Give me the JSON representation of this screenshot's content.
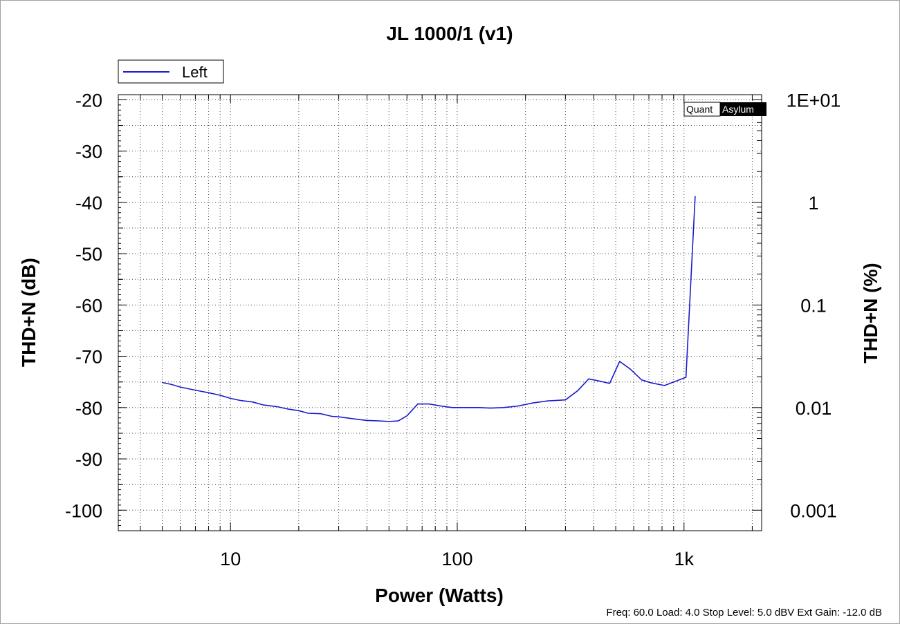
{
  "chart_data": {
    "type": "line",
    "title": "JL 1000/1 (v1)",
    "xlabel": "Power (Watts)",
    "ylabel": "THD+N (dB)",
    "y2label": "THD+N (%)",
    "xscale": "log",
    "xlim": [
      3.2,
      2200
    ],
    "ylim": [
      -104,
      -19
    ],
    "x_ticks": [
      {
        "value": 10,
        "label": "10"
      },
      {
        "value": 100,
        "label": "100"
      },
      {
        "value": 1000,
        "label": "1k"
      }
    ],
    "y_ticks": [
      {
        "value": -20,
        "label": "-20"
      },
      {
        "value": -30,
        "label": "-30"
      },
      {
        "value": -40,
        "label": "-40"
      },
      {
        "value": -50,
        "label": "-50"
      },
      {
        "value": -60,
        "label": "-60"
      },
      {
        "value": -70,
        "label": "-70"
      },
      {
        "value": -80,
        "label": "-80"
      },
      {
        "value": -90,
        "label": "-90"
      },
      {
        "value": -100,
        "label": "-100"
      }
    ],
    "y2_ticks": [
      {
        "db": -20,
        "label": "1E+01"
      },
      {
        "db": -40,
        "label": "1"
      },
      {
        "db": -60,
        "label": "0.1"
      },
      {
        "db": -80,
        "label": "0.01"
      },
      {
        "db": -100,
        "label": "0.001"
      }
    ],
    "grid": true,
    "legend_position": "top-left",
    "series": [
      {
        "name": "Left",
        "color": "#1a1acc",
        "x": [
          5,
          5.5,
          6,
          7,
          8,
          9,
          10,
          11,
          12.5,
          14,
          16,
          18,
          20,
          22,
          25,
          28,
          30,
          35,
          40,
          45,
          50,
          55,
          60,
          67,
          75,
          85,
          95,
          110,
          125,
          140,
          160,
          185,
          215,
          250,
          300,
          340,
          380,
          420,
          470,
          520,
          580,
          650,
          720,
          820,
          1020,
          1120
        ],
        "y": [
          -75.1,
          -75.5,
          -76.0,
          -76.6,
          -77.1,
          -77.6,
          -78.2,
          -78.6,
          -78.9,
          -79.5,
          -79.8,
          -80.3,
          -80.6,
          -81.1,
          -81.2,
          -81.7,
          -81.8,
          -82.2,
          -82.5,
          -82.6,
          -82.7,
          -82.6,
          -81.6,
          -79.3,
          -79.3,
          -79.7,
          -80.0,
          -80.0,
          -80.0,
          -80.1,
          -80.0,
          -79.7,
          -79.1,
          -78.7,
          -78.5,
          -76.7,
          -74.4,
          -74.8,
          -75.3,
          -71.0,
          -72.5,
          -74.6,
          -75.2,
          -75.7,
          -74.1,
          -38.8
        ]
      }
    ]
  },
  "watermark": {
    "part1": "Quant",
    "part2": "Asylum"
  },
  "footer": "Freq: 60.0 Load: 4.0 Stop Level: 5.0 dBV  Ext Gain: -12.0 dB",
  "colors": {
    "series": "#1a1acc",
    "grid": "#444444",
    "frame": "#000000",
    "background": "#ffffff"
  }
}
